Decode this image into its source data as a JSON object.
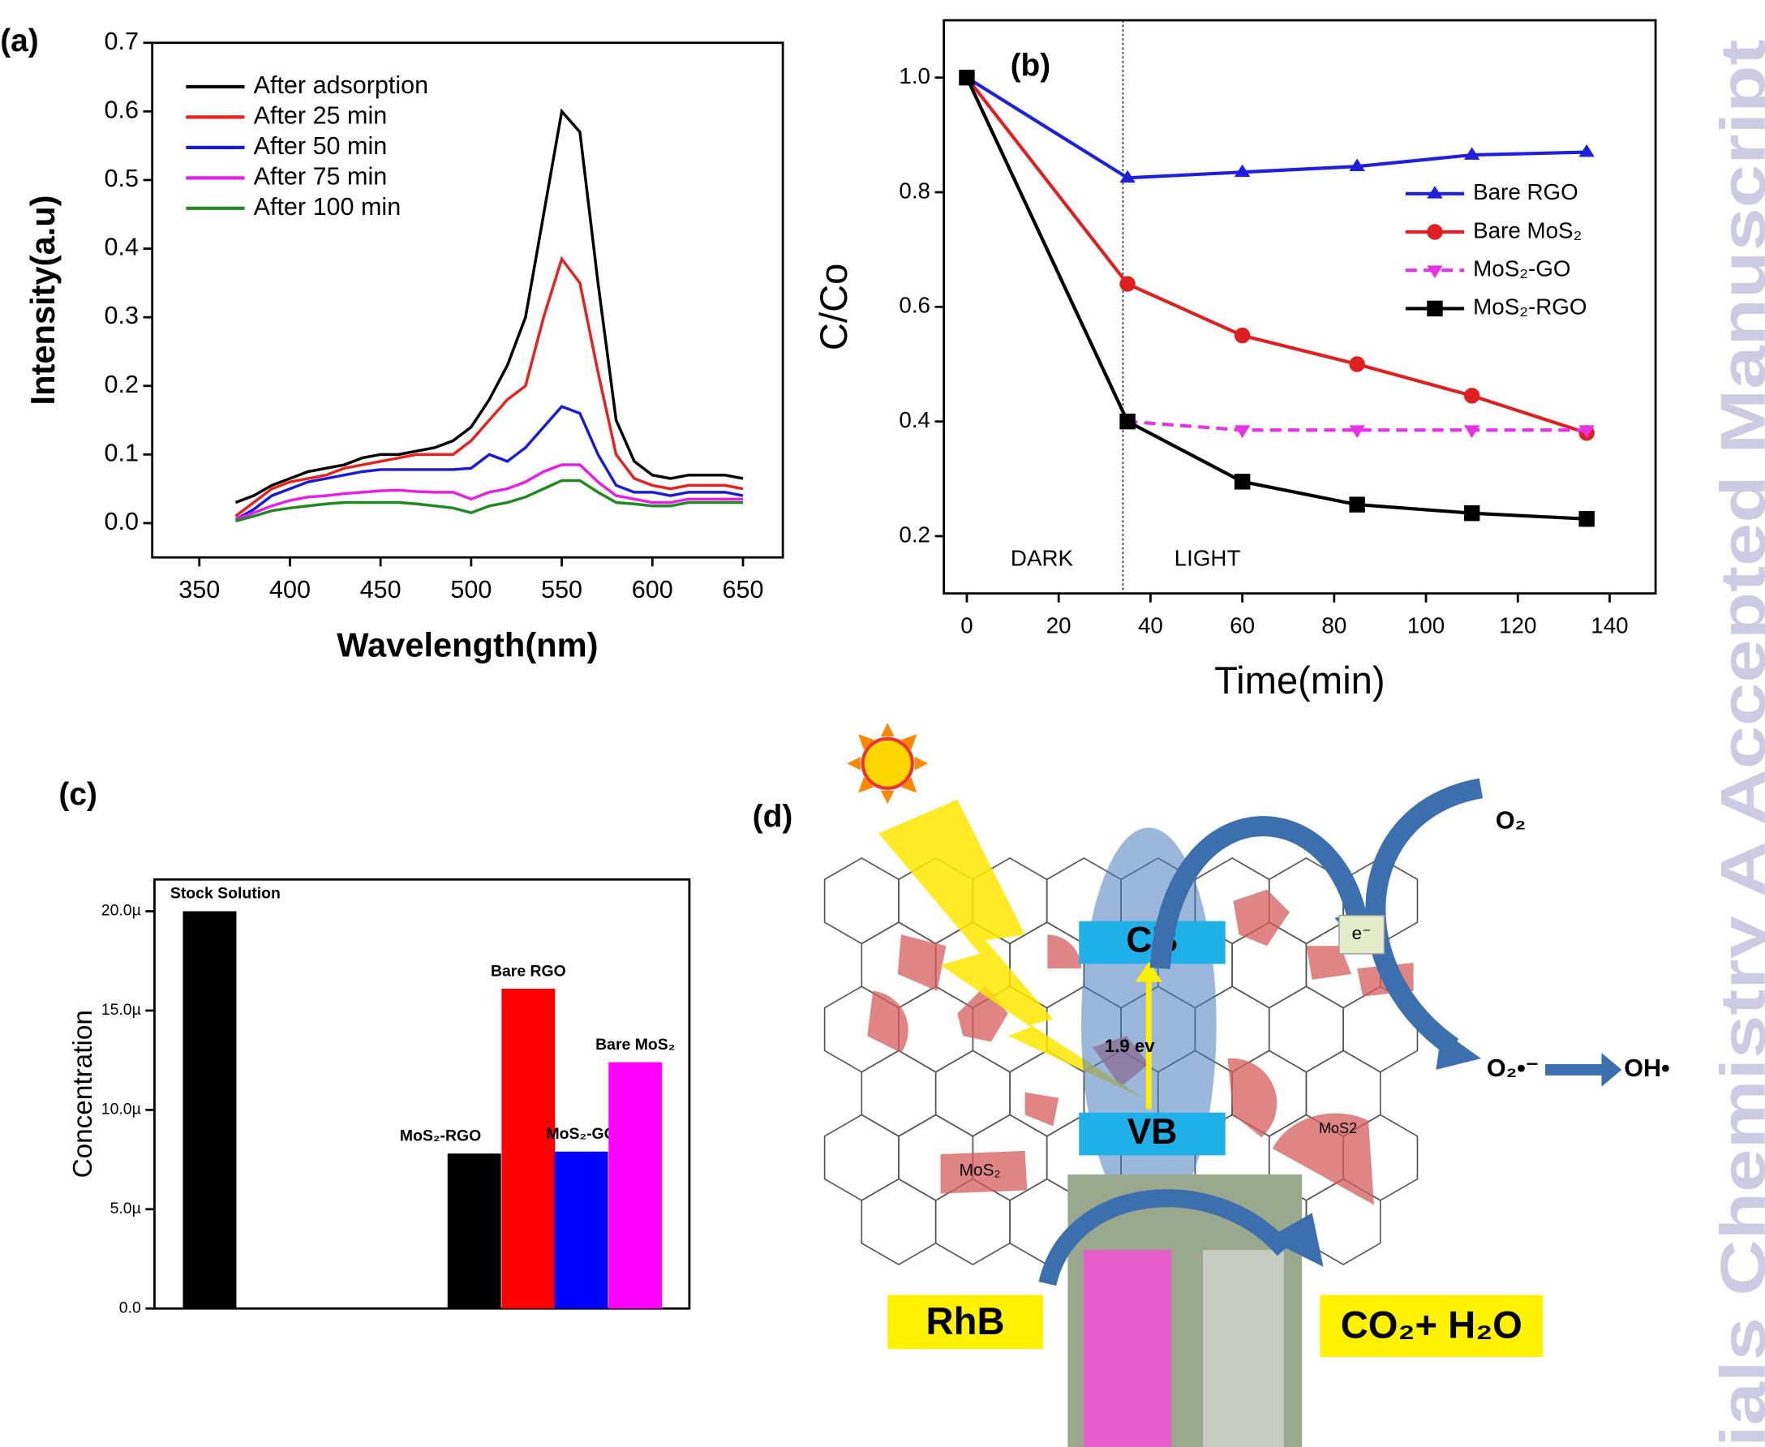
{
  "chart_data": [
    {
      "type": "line",
      "panel_label": "(a)",
      "x_label": "Wavelength(nm)",
      "y_label": "Intensity(a.u)",
      "x": [
        370,
        380,
        390,
        400,
        410,
        420,
        430,
        440,
        450,
        460,
        470,
        480,
        490,
        500,
        510,
        520,
        530,
        540,
        550,
        560,
        570,
        580,
        590,
        600,
        610,
        620,
        630,
        640,
        650
      ],
      "series": [
        {
          "name": "After adsorption",
          "color": "#000000",
          "values": [
            0.03,
            0.04,
            0.055,
            0.065,
            0.075,
            0.08,
            0.085,
            0.095,
            0.1,
            0.1,
            0.105,
            0.11,
            0.12,
            0.14,
            0.18,
            0.23,
            0.3,
            0.45,
            0.6,
            0.57,
            0.35,
            0.15,
            0.09,
            0.07,
            0.065,
            0.07,
            0.07,
            0.07,
            0.065
          ]
        },
        {
          "name": "After 25 min",
          "color": "#e8211f",
          "values": [
            0.01,
            0.03,
            0.05,
            0.06,
            0.065,
            0.07,
            0.08,
            0.085,
            0.09,
            0.095,
            0.1,
            0.1,
            0.1,
            0.12,
            0.15,
            0.18,
            0.2,
            0.3,
            0.385,
            0.35,
            0.22,
            0.1,
            0.065,
            0.055,
            0.05,
            0.055,
            0.055,
            0.055,
            0.05
          ]
        },
        {
          "name": "After 50 min",
          "color": "#1a1adb",
          "values": [
            0.005,
            0.02,
            0.04,
            0.05,
            0.06,
            0.065,
            0.07,
            0.075,
            0.078,
            0.078,
            0.078,
            0.078,
            0.078,
            0.08,
            0.1,
            0.09,
            0.11,
            0.14,
            0.17,
            0.16,
            0.1,
            0.055,
            0.045,
            0.045,
            0.04,
            0.045,
            0.045,
            0.045,
            0.04
          ]
        },
        {
          "name": "After 75 min",
          "color": "#e81ee8",
          "values": [
            0.005,
            0.015,
            0.025,
            0.033,
            0.038,
            0.04,
            0.043,
            0.045,
            0.047,
            0.048,
            0.046,
            0.045,
            0.045,
            0.035,
            0.045,
            0.05,
            0.06,
            0.075,
            0.085,
            0.085,
            0.06,
            0.04,
            0.035,
            0.03,
            0.03,
            0.035,
            0.035,
            0.035,
            0.035
          ]
        },
        {
          "name": "After 100 min",
          "color": "#208a20",
          "values": [
            0.003,
            0.01,
            0.018,
            0.022,
            0.025,
            0.028,
            0.03,
            0.03,
            0.03,
            0.03,
            0.028,
            0.025,
            0.022,
            0.015,
            0.025,
            0.03,
            0.038,
            0.05,
            0.062,
            0.062,
            0.045,
            0.03,
            0.028,
            0.025,
            0.025,
            0.03,
            0.03,
            0.03,
            0.03
          ]
        }
      ],
      "xlim": [
        324,
        672
      ],
      "ylim": [
        -0.05,
        0.7
      ],
      "xticks": [
        350,
        400,
        450,
        500,
        550,
        600,
        650
      ],
      "yticks": [
        {
          "value": 0,
          "label": "0.0"
        },
        0.1,
        0.2,
        0.3,
        0.4,
        0.5,
        0.6,
        0.7
      ],
      "legend": "upper left"
    },
    {
      "type": "line",
      "panel_label": "(b)",
      "x_label": "Time(min)",
      "y_label": "C/Co",
      "x": [
        0,
        35,
        60,
        85,
        110,
        135
      ],
      "series": [
        {
          "name": "Bare RGO",
          "color": "#1f1fe0",
          "marker": "triangle-up",
          "values": [
            1.0,
            0.825,
            0.835,
            0.845,
            0.865,
            0.87
          ]
        },
        {
          "name": "Bare MoS₂",
          "color": "#e02020",
          "marker": "circle",
          "values": [
            1.0,
            0.64,
            0.55,
            0.5,
            0.445,
            0.38
          ]
        },
        {
          "name": "MoS₂-GO",
          "color": "#e830e8",
          "marker": "triangle-down",
          "dashed": true,
          "values": [
            1.0,
            0.4,
            0.385,
            0.385,
            0.385,
            0.385
          ]
        },
        {
          "name": "MoS₂-RGO",
          "color": "#000000",
          "marker": "square",
          "values": [
            1.0,
            0.4,
            0.295,
            0.255,
            0.24,
            0.23
          ]
        }
      ],
      "divider_x": 34,
      "annotations": [
        "DARK",
        "LIGHT"
      ],
      "xlim": [
        -5,
        150
      ],
      "ylim": [
        0.1,
        1.1
      ],
      "xticks": [
        0,
        20,
        40,
        60,
        80,
        100,
        120,
        140
      ],
      "yticks": [
        0.2,
        0.4,
        0.6,
        0.8,
        {
          "value": 1,
          "label": "1.0"
        }
      ],
      "legend": "center right"
    },
    {
      "type": "bar",
      "panel_label": "(c)",
      "y_label": "Concentration",
      "categories": [
        "Stock Solution",
        "MoS₂-RGO",
        "Bare RGO",
        "MoS₂-GO",
        "Bare MoS₂"
      ],
      "values": [
        20,
        7.8,
        16.1,
        7.9,
        12.4
      ],
      "colors": [
        "#000000",
        "#000000",
        "#ff0000",
        "#0000ff",
        "#ff00ff"
      ],
      "ylim": [
        0,
        21.6
      ],
      "yticks": [
        {
          "value": 0,
          "label": "0.0"
        },
        {
          "value": 5,
          "label": "5.0µ"
        },
        {
          "value": 10,
          "label": "10.0µ"
        },
        {
          "value": 15,
          "label": "15.0µ"
        },
        {
          "value": 20,
          "label": "20.0µ"
        }
      ]
    }
  ],
  "diagram": {
    "panel_label": "(d)",
    "cb": "CB",
    "vb": "VB",
    "band_gap": "1.9 ev",
    "electron": "e⁻",
    "oxygen": "O₂",
    "superoxide": "O₂•⁻",
    "hydroxyl": "OH•",
    "reactant": "RhB",
    "products": "CO₂+ H₂O",
    "mos2_labels": [
      "MoS₂",
      "MoS2"
    ]
  },
  "watermark": "ials Chemistry A Accepted Manuscript"
}
